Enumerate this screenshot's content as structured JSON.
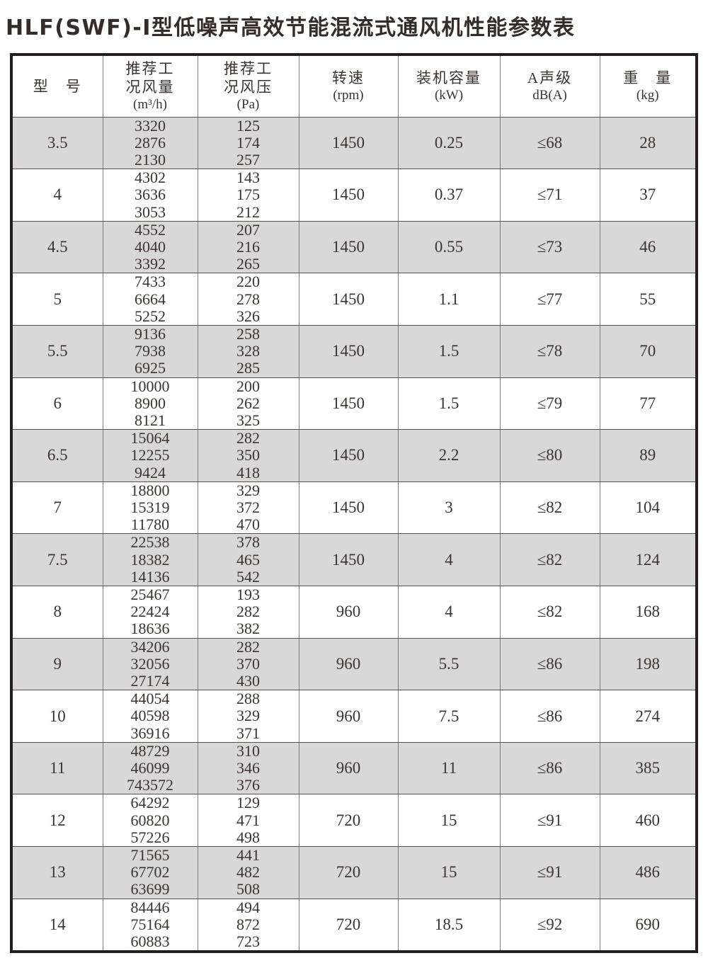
{
  "page": {
    "title": "HLF(SWF)-Ⅰ型低噪声高效节能混流式通风机性能参数表"
  },
  "table": {
    "columns": [
      {
        "id": "model",
        "lines": [
          "型　号"
        ]
      },
      {
        "id": "air_volume",
        "lines": [
          "推荐工",
          "况风量",
          "(m³/h)"
        ]
      },
      {
        "id": "air_pressure",
        "lines": [
          "推荐工",
          "况风压",
          "(Pa)"
        ]
      },
      {
        "id": "speed",
        "lines": [
          "转速",
          "(rpm)"
        ]
      },
      {
        "id": "power",
        "lines": [
          "装机容量",
          "(kW)"
        ]
      },
      {
        "id": "noise",
        "lines": [
          "A声级",
          "dB(A)"
        ]
      },
      {
        "id": "weight",
        "lines": [
          "重　量",
          "(kg)"
        ]
      }
    ],
    "rows": [
      {
        "model": "3.5",
        "air_volume": [
          "3320",
          "2876",
          "2130"
        ],
        "air_pressure": [
          "125",
          "174",
          "257"
        ],
        "speed": "1450",
        "power": "0.25",
        "noise": "≤68",
        "weight": "28"
      },
      {
        "model": "4",
        "air_volume": [
          "4302",
          "3636",
          "3053"
        ],
        "air_pressure": [
          "143",
          "175",
          "212"
        ],
        "speed": "1450",
        "power": "0.37",
        "noise": "≤71",
        "weight": "37"
      },
      {
        "model": "4.5",
        "air_volume": [
          "4552",
          "4040",
          "3392"
        ],
        "air_pressure": [
          "207",
          "216",
          "265"
        ],
        "speed": "1450",
        "power": "0.55",
        "noise": "≤73",
        "weight": "46"
      },
      {
        "model": "5",
        "air_volume": [
          "7433",
          "6664",
          "5252"
        ],
        "air_pressure": [
          "220",
          "278",
          "326"
        ],
        "speed": "1450",
        "power": "1.1",
        "noise": "≤77",
        "weight": "55"
      },
      {
        "model": "5.5",
        "air_volume": [
          "9136",
          "7938",
          "6925"
        ],
        "air_pressure": [
          "258",
          "328",
          "285"
        ],
        "speed": "1450",
        "power": "1.5",
        "noise": "≤78",
        "weight": "70"
      },
      {
        "model": "6",
        "air_volume": [
          "10000",
          "8900",
          "8121"
        ],
        "air_pressure": [
          "200",
          "262",
          "325"
        ],
        "speed": "1450",
        "power": "1.5",
        "noise": "≤79",
        "weight": "77"
      },
      {
        "model": "6.5",
        "air_volume": [
          "15064",
          "12255",
          "9424"
        ],
        "air_pressure": [
          "282",
          "350",
          "418"
        ],
        "speed": "1450",
        "power": "2.2",
        "noise": "≤80",
        "weight": "89"
      },
      {
        "model": "7",
        "air_volume": [
          "18800",
          "15319",
          "11780"
        ],
        "air_pressure": [
          "329",
          "372",
          "470"
        ],
        "speed": "1450",
        "power": "3",
        "noise": "≤82",
        "weight": "104"
      },
      {
        "model": "7.5",
        "air_volume": [
          "22538",
          "18382",
          "14136"
        ],
        "air_pressure": [
          "378",
          "465",
          "542"
        ],
        "speed": "1450",
        "power": "4",
        "noise": "≤82",
        "weight": "124"
      },
      {
        "model": "8",
        "air_volume": [
          "25467",
          "22424",
          "18636"
        ],
        "air_pressure": [
          "193",
          "282",
          "382"
        ],
        "speed": "960",
        "power": "4",
        "noise": "≤82",
        "weight": "168"
      },
      {
        "model": "9",
        "air_volume": [
          "34206",
          "32056",
          "27174"
        ],
        "air_pressure": [
          "282",
          "370",
          "430"
        ],
        "speed": "960",
        "power": "5.5",
        "noise": "≤86",
        "weight": "198"
      },
      {
        "model": "10",
        "air_volume": [
          "44054",
          "40598",
          "36916"
        ],
        "air_pressure": [
          "288",
          "329",
          "371"
        ],
        "speed": "960",
        "power": "7.5",
        "noise": "≤86",
        "weight": "274"
      },
      {
        "model": "11",
        "air_volume": [
          "48729",
          "46099",
          "743572"
        ],
        "air_pressure": [
          "310",
          "346",
          "376"
        ],
        "speed": "960",
        "power": "11",
        "noise": "≤86",
        "weight": "385"
      },
      {
        "model": "12",
        "air_volume": [
          "64292",
          "60820",
          "57226"
        ],
        "air_pressure": [
          "129",
          "471",
          "498"
        ],
        "speed": "720",
        "power": "15",
        "noise": "≤91",
        "weight": "460"
      },
      {
        "model": "13",
        "air_volume": [
          "71565",
          "67702",
          "63699"
        ],
        "air_pressure": [
          "441",
          "482",
          "508"
        ],
        "speed": "720",
        "power": "15",
        "noise": "≤91",
        "weight": "486"
      },
      {
        "model": "14",
        "air_volume": [
          "84446",
          "75164",
          "60883"
        ],
        "air_pressure": [
          "494",
          "872",
          "723"
        ],
        "speed": "720",
        "power": "18.5",
        "noise": "≤92",
        "weight": "690"
      }
    ]
  },
  "colors": {
    "row_shade": "#d8d8d8",
    "grid_line": "#7e7e7e",
    "outer_border": "#231e1d",
    "text": "#3b3433"
  }
}
